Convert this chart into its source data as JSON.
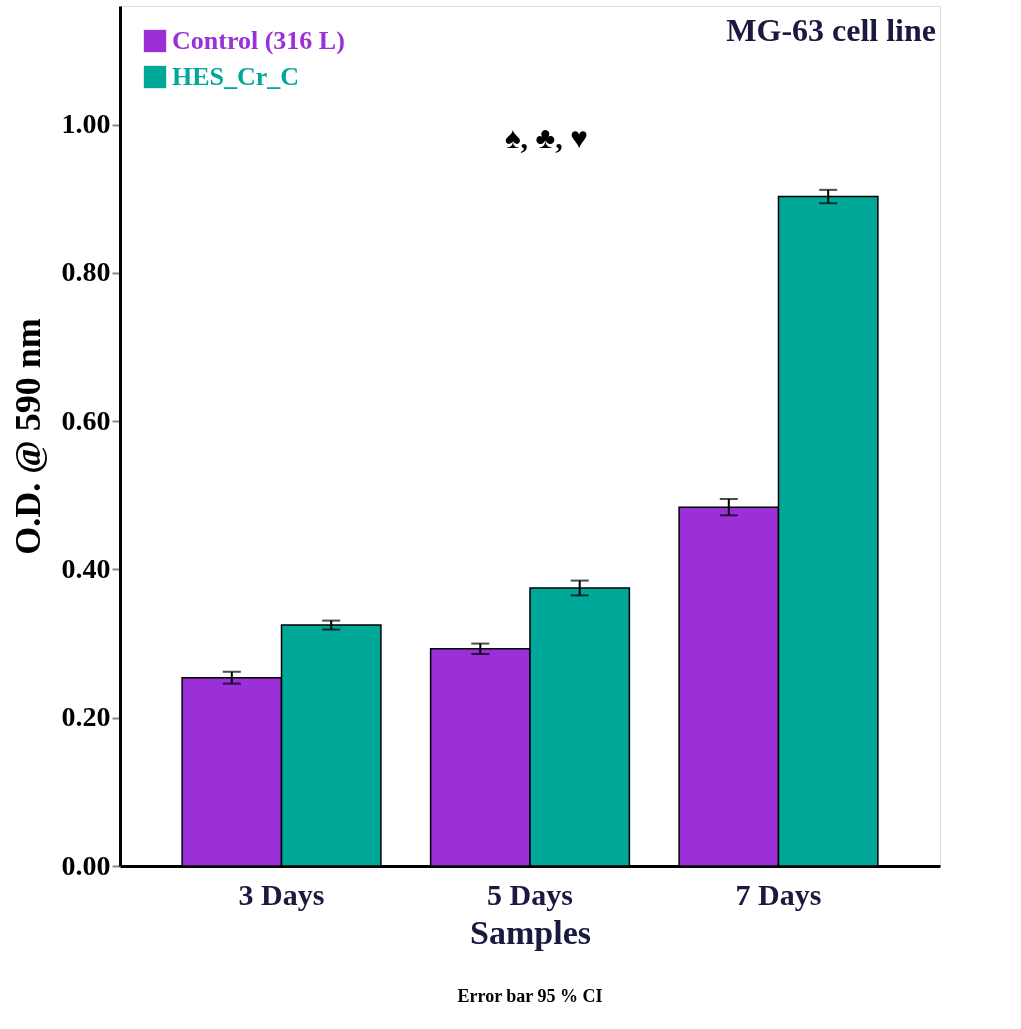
{
  "chart_data": {
    "type": "bar",
    "title": "MG-63 cell line",
    "xlabel": "Samples",
    "ylabel": "O.D. @ 590 nm",
    "categories": [
      "3 Days",
      "5 Days",
      "7 Days"
    ],
    "series": [
      {
        "name": "Control (316 L)",
        "color": "#9b30d9",
        "values": [
          0.254,
          0.293,
          0.484
        ],
        "errors": [
          0.008,
          0.007,
          0.011
        ]
      },
      {
        "name": "HES_Cr_C",
        "color": "#00a89a",
        "values": [
          0.325,
          0.375,
          0.903
        ],
        "errors": [
          0.006,
          0.01,
          0.009
        ]
      }
    ],
    "ylim": [
      0,
      1.16
    ],
    "yticks": [
      {
        "value": 0,
        "label": "0.00"
      },
      {
        "value": 0.2,
        "label": "0.20"
      },
      {
        "value": 0.4,
        "label": "0.40"
      },
      {
        "value": 0.6,
        "label": "0.60"
      },
      {
        "value": 0.8,
        "label": "0.80"
      },
      {
        "value": 1.0,
        "label": "1.00"
      }
    ],
    "grid": false,
    "legend": "top left",
    "annotations": [
      "♠, ♣, ♥",
      "Error bar 95 % CI"
    ]
  }
}
